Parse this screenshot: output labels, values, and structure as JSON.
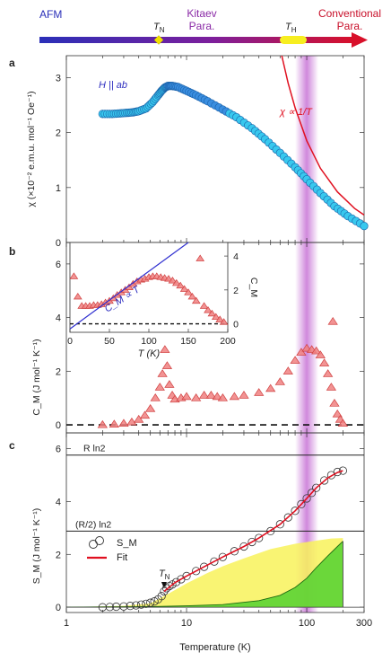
{
  "phase_bar": {
    "labels": {
      "afm": "AFM",
      "tn": "T",
      "tn_sub": "N",
      "kitaev_line1": "Kitaev",
      "kitaev_line2": "Para.",
      "th": "T",
      "th_sub": "H",
      "conv_line1": "Conventional",
      "conv_line2": "Para."
    },
    "colors": {
      "start": "#2a2fb8",
      "mid": "#7d1f9c",
      "end": "#d8102a",
      "tn_marker": "#f2e000",
      "th_marker": "#f7ee20"
    }
  },
  "highlight_band": {
    "T_min": 80,
    "T_max": 125,
    "color": "#c060d0"
  },
  "chart_data": [
    {
      "panel": "a",
      "type": "scatter",
      "x_scale": "log",
      "xlim": [
        1,
        300
      ],
      "ylim": [
        0,
        3.4
      ],
      "yticks": [
        0,
        1,
        2,
        3
      ],
      "ylabel": "χ (×10⁻² e.m.u. mol⁻¹ Oe⁻¹)",
      "annotations": {
        "field": "H || ab",
        "curie": "χ ∝ 1/T"
      },
      "series": [
        {
          "x": [
            2,
            2.4,
            2.8,
            3.2,
            3.6,
            4,
            4.6,
            5.2,
            5.8,
            6.2,
            6.6,
            7,
            7.6,
            8.5,
            10,
            12,
            15,
            20,
            26,
            35,
            45,
            60,
            80,
            100,
            130,
            170,
            220,
            300
          ],
          "y": [
            2.34,
            2.34,
            2.35,
            2.36,
            2.37,
            2.39,
            2.44,
            2.55,
            2.68,
            2.76,
            2.82,
            2.85,
            2.85,
            2.83,
            2.76,
            2.68,
            2.57,
            2.42,
            2.28,
            2.08,
            1.88,
            1.63,
            1.37,
            1.15,
            0.9,
            0.66,
            0.48,
            0.3
          ]
        }
      ],
      "curie_fit": {
        "x": [
          62,
          70,
          80,
          100,
          130,
          180,
          250,
          300
        ],
        "y": [
          3.4,
          2.9,
          2.45,
          1.85,
          1.35,
          0.92,
          0.62,
          0.5
        ]
      }
    },
    {
      "panel": "b",
      "type": "scatter",
      "x_scale": "log",
      "xlim": [
        1,
        300
      ],
      "ylim": [
        -0.3,
        6.8
      ],
      "yticks": [
        0,
        2,
        4,
        6
      ],
      "ylabel": "C_M (J mol⁻¹ K⁻¹)",
      "series": [
        {
          "x": [
            2,
            2.5,
            3,
            3.5,
            4,
            4.5,
            5,
            5.5,
            6,
            6.3,
            6.6,
            6.9,
            7.2,
            7.6,
            8,
            9,
            10,
            12,
            14,
            16,
            18,
            20,
            25,
            30,
            40,
            50,
            60,
            70,
            80,
            90,
            100,
            110,
            120,
            130,
            140,
            150,
            160,
            170,
            180,
            190,
            200
          ],
          "y": [
            0.0,
            0.02,
            0.05,
            0.1,
            0.2,
            0.35,
            0.6,
            1.0,
            1.4,
            1.9,
            2.8,
            2.2,
            1.5,
            1.1,
            0.95,
            1.0,
            1.05,
            1.0,
            1.1,
            1.1,
            1.05,
            1.0,
            1.05,
            1.1,
            1.2,
            1.35,
            1.6,
            2.0,
            2.4,
            2.7,
            2.85,
            2.8,
            2.75,
            2.6,
            2.3,
            1.9,
            1.4,
            0.8,
            0.4,
            0.2,
            0.05
          ]
        },
        {
          "x": [
            165
          ],
          "y": [
            3.85
          ]
        }
      ],
      "inset": {
        "xlim": [
          0,
          200
        ],
        "ylim": [
          -0.5,
          4.8
        ],
        "xticks": [
          0,
          50,
          100,
          150,
          200
        ],
        "yticks": [
          0,
          2,
          4
        ],
        "xlabel": "T (K)",
        "ylabel": "C_M",
        "linear_label": "C_M ∝ T",
        "linear_fit": {
          "x": [
            0,
            150
          ],
          "y": [
            -0.3,
            4.8
          ]
        },
        "series": {
          "x": [
            5,
            10,
            15,
            20,
            25,
            30,
            35,
            40,
            45,
            50,
            55,
            60,
            65,
            70,
            75,
            80,
            85,
            90,
            95,
            100,
            105,
            110,
            115,
            120,
            125,
            130,
            135,
            140,
            145,
            150,
            155,
            160,
            165,
            170,
            175,
            180,
            185,
            190,
            195
          ],
          "y": [
            2.8,
            1.6,
            1.05,
            1.05,
            1.05,
            1.1,
            1.1,
            1.15,
            1.25,
            1.35,
            1.5,
            1.7,
            1.85,
            2.0,
            2.15,
            2.35,
            2.5,
            2.6,
            2.65,
            2.75,
            2.8,
            2.8,
            2.75,
            2.7,
            2.65,
            2.55,
            2.4,
            2.25,
            2.05,
            1.85,
            1.6,
            1.35,
            3.85,
            1.05,
            0.8,
            0.6,
            0.4,
            0.25,
            0.1
          ]
        }
      }
    },
    {
      "panel": "c",
      "type": "scatter",
      "x_scale": "log",
      "xlim": [
        1,
        300
      ],
      "ylim": [
        -0.2,
        6.6
      ],
      "yticks": [
        0,
        2,
        4,
        6
      ],
      "xticks": [
        1,
        10,
        100,
        300
      ],
      "xlabel": "Temperature (K)",
      "ylabel": "S_M (J mol⁻¹ K⁻¹)",
      "reference_lines": [
        {
          "label": "R ln2",
          "value": 5.76
        },
        {
          "label": "(R/2) ln2",
          "value": 2.88
        }
      ],
      "legend": {
        "markers": "S_M",
        "line": "Fit"
      },
      "tn_arrow": {
        "label": "T",
        "sub": "N",
        "x": 6.5
      },
      "series": [
        {
          "name": "S_M",
          "x": [
            2,
            2.3,
            2.6,
            3,
            3.4,
            3.8,
            4.2,
            4.6,
            5,
            5.4,
            5.8,
            6.2,
            6.5,
            6.8,
            7.2,
            7.6,
            8.2,
            9,
            10,
            12,
            14,
            17,
            20,
            25,
            30,
            35,
            40,
            50,
            60,
            70,
            80,
            90,
            100,
            110,
            120,
            140,
            160,
            180,
            200
          ],
          "y": [
            0.0,
            0.01,
            0.02,
            0.03,
            0.05,
            0.07,
            0.1,
            0.13,
            0.17,
            0.22,
            0.3,
            0.42,
            0.6,
            0.72,
            0.8,
            0.86,
            0.95,
            1.06,
            1.18,
            1.37,
            1.53,
            1.73,
            1.9,
            2.12,
            2.3,
            2.47,
            2.62,
            2.88,
            3.14,
            3.4,
            3.65,
            3.9,
            4.12,
            4.33,
            4.52,
            4.8,
            5.0,
            5.12,
            5.17
          ]
        }
      ],
      "fit": {
        "x": [
          6.5,
          8,
          10,
          14,
          20,
          30,
          40,
          60,
          80,
          100,
          120,
          150,
          180,
          200
        ],
        "y": [
          0.6,
          0.93,
          1.18,
          1.53,
          1.9,
          2.3,
          2.62,
          3.14,
          3.65,
          4.12,
          4.52,
          4.9,
          5.1,
          5.17
        ]
      },
      "areas": {
        "yellow": {
          "x": [
            1,
            3,
            5,
            7,
            10,
            15,
            20,
            30,
            50,
            80,
            120,
            160,
            200
          ],
          "y": [
            0,
            0.05,
            0.15,
            0.5,
            0.9,
            1.3,
            1.55,
            1.85,
            2.2,
            2.4,
            2.52,
            2.6,
            2.62
          ]
        },
        "green": {
          "x": [
            1,
            5,
            10,
            20,
            40,
            60,
            80,
            100,
            120,
            150,
            180,
            200
          ],
          "y": [
            0,
            0.02,
            0.05,
            0.1,
            0.25,
            0.45,
            0.75,
            1.1,
            1.5,
            1.95,
            2.3,
            2.5
          ]
        },
        "colors": {
          "yellow": "#f8f25a",
          "green": "#52d130"
        }
      }
    }
  ]
}
